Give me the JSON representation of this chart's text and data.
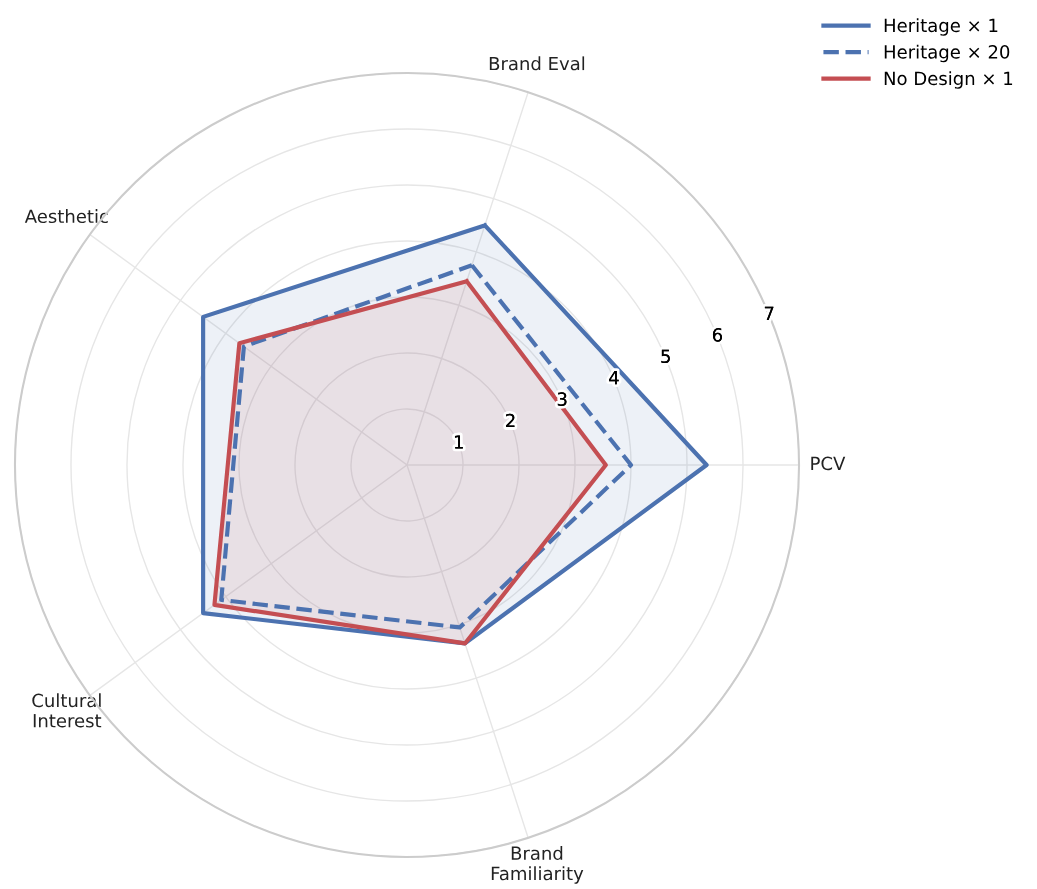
{
  "chart_data": {
    "type": "radar",
    "categories": [
      "Brand Eval",
      "PCV",
      "Brand\nFamiliarity",
      "Cultural\nInterest",
      "Aesthetic"
    ],
    "series": [
      {
        "name": "Heritage × 1",
        "color": "#4c72b0",
        "line_style": "solid",
        "values": [
          4.5,
          5.35,
          3.35,
          4.5,
          4.5
        ]
      },
      {
        "name": "Heritage × 20",
        "color": "#4c72b0",
        "line_style": "dashed",
        "values": [
          3.75,
          4.0,
          3.05,
          4.1,
          3.6
        ]
      },
      {
        "name": "No Design × 1",
        "color": "#c44e52",
        "line_style": "solid",
        "values": [
          3.45,
          3.55,
          3.35,
          4.25,
          3.7
        ]
      }
    ],
    "ylim": [
      0,
      7
    ],
    "yticks": [
      1,
      2,
      3,
      4,
      5,
      6,
      7
    ],
    "grid": true,
    "legend": "top right",
    "marker": "none"
  }
}
